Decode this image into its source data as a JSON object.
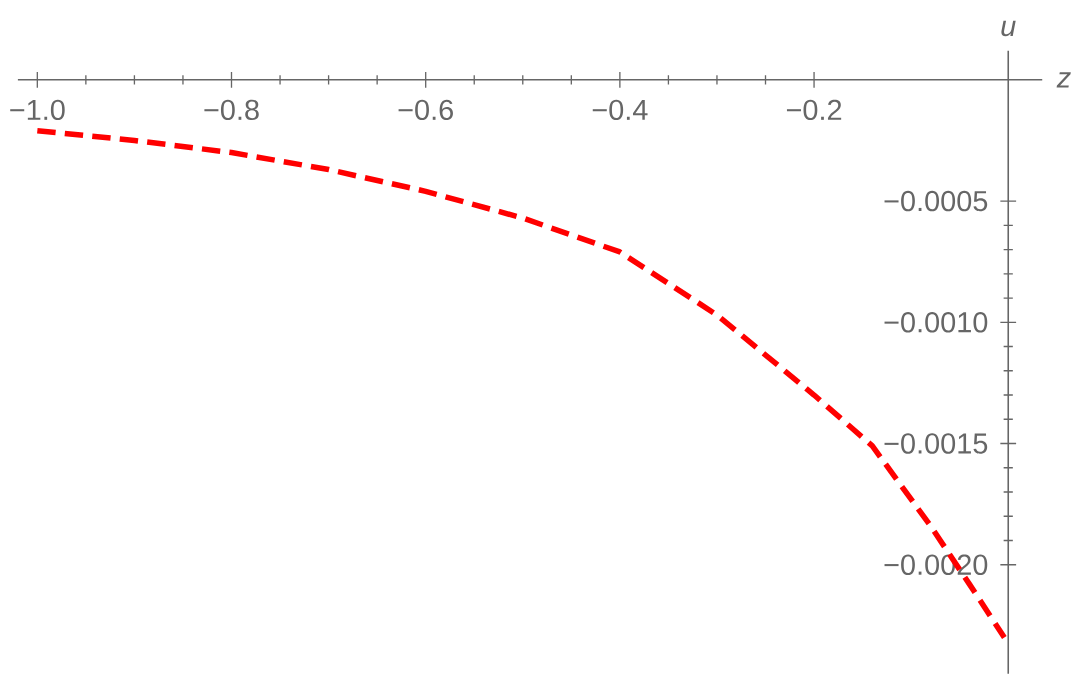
{
  "chart_data": {
    "type": "line",
    "xlabel": "z",
    "ylabel": "u",
    "x": [
      -1.0,
      -0.9,
      -0.8,
      -0.7,
      -0.6,
      -0.5,
      -0.4,
      -0.3,
      -0.2,
      -0.14,
      -0.08,
      -0.04,
      -0.004
    ],
    "series": [
      {
        "color": "#ff0000",
        "line_style": "dashed",
        "values": [
          -0.00021,
          -0.00025,
          -0.0003,
          -0.00037,
          -0.00046,
          -0.00057,
          -0.00071,
          -0.00097,
          -0.0013,
          -0.00151,
          -0.00184,
          -0.00208,
          -0.0023
        ]
      }
    ],
    "marker": "none",
    "xlim": [
      -1.02,
      0.035
    ],
    "ylim": [
      -0.00245,
      0.00012
    ],
    "xticks": [
      {
        "value": -1.0,
        "label": "−1.0"
      },
      {
        "value": -0.8,
        "label": "−0.8"
      },
      {
        "value": -0.6,
        "label": "−0.6"
      },
      {
        "value": -0.4,
        "label": "−0.4"
      },
      {
        "value": -0.2,
        "label": "−0.2"
      }
    ],
    "yticks": [
      {
        "value": -0.0005,
        "label": "−0.0005"
      },
      {
        "value": -0.001,
        "label": "−0.0010"
      },
      {
        "value": -0.0015,
        "label": "−0.0015"
      },
      {
        "value": -0.002,
        "label": "−0.0020"
      }
    ]
  }
}
